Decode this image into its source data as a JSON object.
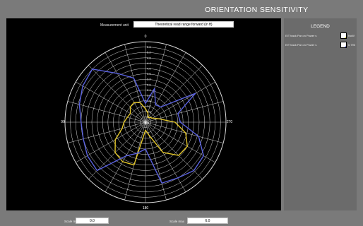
{
  "header": {
    "title": "ORIENTATION SENSITIVITY"
  },
  "measurement_unit": {
    "label": "Measurement unit",
    "value": "Theoretical read range forward (in ft)"
  },
  "legend": {
    "title": "LEGEND",
    "items": [
      {
        "label": "EIT track Par on Power s",
        "value": "NoW",
        "color": "#e3c62a"
      },
      {
        "label": "EIT track Par on Power s",
        "value": "0.790",
        "color": "#5a62e0"
      }
    ]
  },
  "scale": {
    "min_label": "Scale min",
    "min_value": "0.0",
    "max_label": "Scale max",
    "max_value": "6.0"
  },
  "chart_data": {
    "type": "polar-line",
    "angle_labels": {
      "top": "0",
      "right": "270",
      "bottom": "180",
      "left": "90"
    },
    "radial_range": [
      0,
      6
    ],
    "radial_tick_labels": [
      "5.6",
      "5.2",
      "4.8",
      "4.4",
      "4.0",
      "3.6",
      "3.2",
      "2.8",
      "2.4",
      "2.0",
      "1.6",
      "1.2",
      "0.8",
      "0.4"
    ],
    "center_label": "0.0",
    "angle_step_deg": 15,
    "series": [
      {
        "color": "#e3c62a",
        "angles_deg": [
          0,
          15,
          30,
          45,
          60,
          75,
          90,
          105,
          120,
          135,
          150,
          165,
          180,
          195,
          210,
          225,
          240,
          255,
          270,
          285,
          300,
          315,
          330,
          345
        ],
        "values": [
          1.0,
          1.5,
          1.7,
          1.6,
          1.3,
          1.4,
          1.6,
          1.8,
          2.6,
          3.2,
          3.4,
          3.3,
          0.6,
          1.0,
          2.6,
          3.5,
          3.6,
          3.1,
          2.2,
          1.0,
          0.6,
          0.5,
          0.4,
          0.7
        ]
      },
      {
        "color": "#5a62e0",
        "angles_deg": [
          0,
          15,
          30,
          45,
          60,
          75,
          90,
          105,
          120,
          135,
          150,
          165,
          180,
          195,
          210,
          225,
          240,
          255,
          270,
          285,
          300,
          315,
          330,
          345
        ],
        "values": [
          1.4,
          3.4,
          4.2,
          5.6,
          5.4,
          5.1,
          4.8,
          4.8,
          5.0,
          5.1,
          2.9,
          2.4,
          2.0,
          4.7,
          4.8,
          5.1,
          5.0,
          4.1,
          2.6,
          2.5,
          4.3,
          1.6,
          1.5,
          2.6
        ]
      }
    ]
  }
}
